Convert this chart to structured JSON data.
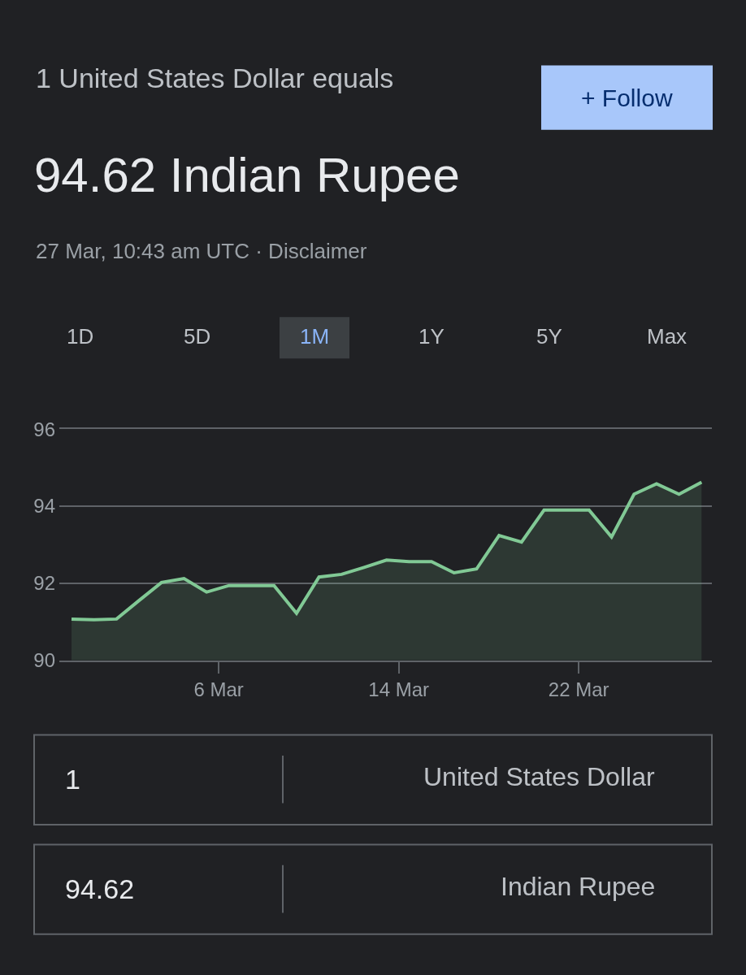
{
  "chart_data": {
    "type": "area",
    "title": "1 United States Dollar equals",
    "subtitle": "94.62 Indian Rupee",
    "annotations": [
      "27 Mar, 10:43 am UTC · Disclaimer",
      "+ Follow",
      "1D",
      "5D",
      "1M",
      "1Y",
      "5Y",
      "Max",
      "1",
      "United States Dollar",
      "94.62",
      "Indian Rupee"
    ],
    "x": [
      "--02-27T11:00",
      "--02-28T11:00",
      "--03-01T11:00",
      "--03-02T11:00",
      "--03-03T11:00",
      "--03-04T11:00",
      "--03-05T11:00",
      "--03-06T11:00",
      "--03-07T11:00",
      "--03-08T11:00",
      "--03-09T11:00",
      "--03-10T11:00",
      "--03-11T11:00",
      "--03-12T11:00",
      "--03-13T11:00",
      "--03-14T11:00",
      "--03-15T11:00",
      "--03-16T11:00",
      "--03-17T11:00",
      "--03-18T11:00",
      "--03-19T11:00",
      "--03-20T11:00",
      "--03-21T11:00",
      "--03-22T11:00",
      "--03-23T11:00",
      "--03-24T11:00",
      "--03-25T11:00",
      "--03-26T11:00",
      "--03-27T11:00"
    ],
    "series": [
      {
        "color": "#81c995",
        "values": [
          91.07,
          91.05,
          91.07,
          91.55,
          92.02,
          92.12,
          91.77,
          91.94,
          91.94,
          91.94,
          91.22,
          92.16,
          92.23,
          92.41,
          92.6,
          92.56,
          92.56,
          92.27,
          92.37,
          93.24,
          93.07,
          93.9,
          93.9,
          93.9,
          93.2,
          94.31,
          94.58,
          94.31,
          94.62
        ]
      }
    ],
    "xlim": [
      "--02-26T22:00",
      "--03-27T22:00"
    ],
    "xticks": [
      {
        "value": "--03-06",
        "label": "6 Mar"
      },
      {
        "value": "--03-14",
        "label": "14 Mar"
      },
      {
        "value": "--03-22",
        "label": "22 Mar"
      }
    ],
    "ylim": [
      90,
      96
    ],
    "yticks": [
      90,
      92,
      94,
      96
    ],
    "grid": "y",
    "marker": "none",
    "line_style": "solid"
  }
}
